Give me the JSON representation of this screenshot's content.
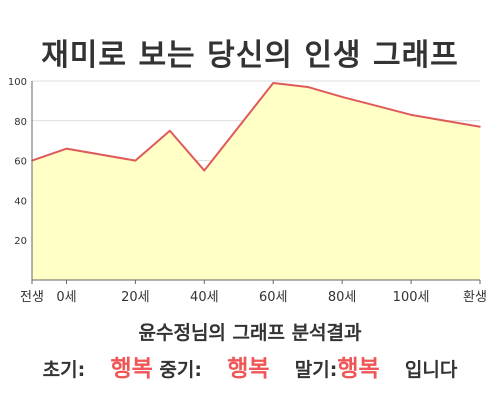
{
  "title": "재미로 보는 당신의 인생 그래프",
  "summary": {
    "line1": "윤수정님의 그래프 분석결과",
    "early_label": "초기:",
    "early_value": "행복",
    "mid_label": "중기:",
    "mid_value": "행복",
    "late_label": "말기:",
    "late_value": "행복",
    "ending": "입니다"
  },
  "colors": {
    "fill": "#ffffc6",
    "line": "#e05a5a",
    "highlight": "#f05656"
  },
  "chart_data": {
    "type": "area",
    "title": "재미로 보는 당신의 인생 그래프",
    "xlabel": "",
    "ylabel": "",
    "x_ticks": [
      {
        "pos": -10,
        "label": "전생"
      },
      {
        "pos": 0,
        "label": "0세"
      },
      {
        "pos": 20,
        "label": "20세"
      },
      {
        "pos": 40,
        "label": "40세"
      },
      {
        "pos": 60,
        "label": "60세"
      },
      {
        "pos": 80,
        "label": "80세"
      },
      {
        "pos": 100,
        "label": "100세"
      },
      {
        "pos": 120,
        "label": "환생"
      }
    ],
    "y_ticks": [
      20,
      40,
      60,
      80,
      100
    ],
    "xlim": [
      -10,
      120
    ],
    "ylim": [
      0,
      100
    ],
    "grid": "horizontal",
    "series": [
      {
        "points": [
          {
            "x": -10,
            "y": 60
          },
          {
            "x": 0,
            "y": 66
          },
          {
            "x": 20,
            "y": 60
          },
          {
            "x": 30,
            "y": 75
          },
          {
            "x": 40,
            "y": 55
          },
          {
            "x": 60,
            "y": 99
          },
          {
            "x": 70,
            "y": 97
          },
          {
            "x": 80,
            "y": 92
          },
          {
            "x": 100,
            "y": 83
          },
          {
            "x": 120,
            "y": 77
          }
        ]
      }
    ]
  }
}
